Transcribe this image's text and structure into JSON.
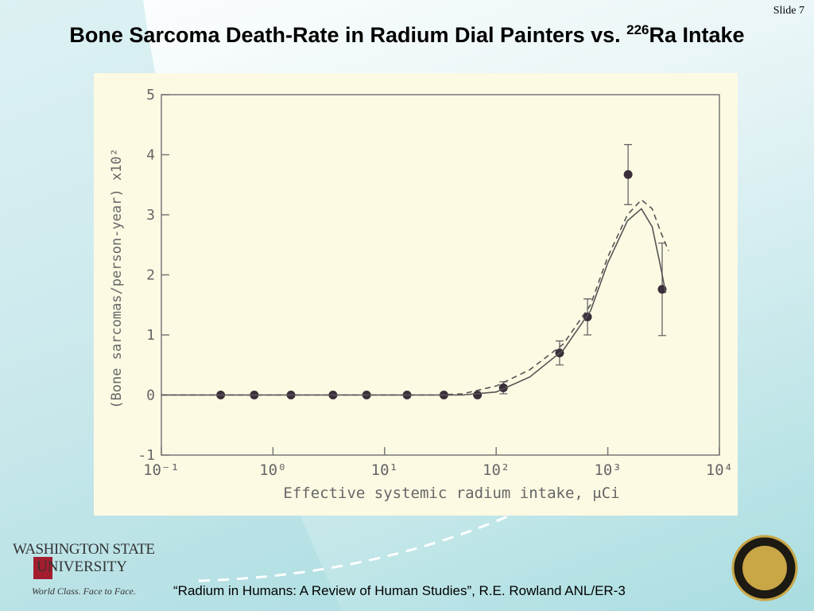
{
  "slide_number": "Slide 7",
  "title": {
    "before": "Bone Sarcoma Death-Rate in Radium Dial Painters vs. ",
    "superscript": "226",
    "after": "Ra Intake"
  },
  "logo": {
    "line1": "WASHINGTON STATE",
    "line2": "UNIVERSITY",
    "tagline": "World Class. Face to Face."
  },
  "citation": "“Radium in Humans: A Review of Human Studies”, R.E. Rowland ANL/ER-3",
  "chart_data": {
    "type": "scatter",
    "x_label": "Effective systemic radium intake, μCi",
    "y_label": "(Bone sarcomas/person-year)  x10²",
    "log_x": true,
    "xlim": [
      0.1,
      10000
    ],
    "xticks": [
      {
        "value": 0.1,
        "label": "10⁻¹"
      },
      {
        "value": 1,
        "label": "10⁰"
      },
      {
        "value": 10,
        "label": "10¹"
      },
      {
        "value": 100,
        "label": "10²"
      },
      {
        "value": 1000,
        "label": "10³"
      },
      {
        "value": 10000,
        "label": "10⁴"
      }
    ],
    "ylim": [
      -1,
      5
    ],
    "yticks": [
      -1,
      0,
      1,
      2,
      3,
      4,
      5
    ],
    "series": [
      {
        "type": "scatter",
        "color": "#3a2f3a",
        "x": [
          0.34,
          0.68,
          1.45,
          3.45,
          6.9,
          15.9,
          34,
          68,
          116,
          370,
          658,
          1520,
          3070
        ],
        "values": [
          0,
          0,
          0,
          0,
          0,
          0,
          0,
          0,
          0.12,
          0.7,
          1.3,
          3.67,
          1.76
        ],
        "errors": [
          null,
          null,
          null,
          null,
          null,
          null,
          null,
          null,
          0.1,
          0.2,
          0.3,
          0.5,
          0.77
        ]
      },
      {
        "type": "line",
        "color": "#555555",
        "dashed": false,
        "x": [
          0.1,
          1,
          10,
          50,
          100,
          200,
          400,
          700,
          1000,
          1500,
          2000,
          2500,
          3000,
          3300
        ],
        "values": [
          0,
          0,
          0,
          0,
          0.05,
          0.3,
          0.75,
          1.4,
          2.2,
          2.9,
          3.1,
          2.8,
          2.1,
          1.7
        ]
      },
      {
        "type": "line",
        "color": "#555555",
        "dashed": true,
        "x": [
          0.1,
          1,
          10,
          30,
          50,
          100,
          200,
          400,
          700,
          1000,
          1500,
          2000,
          2500,
          3000,
          3500
        ],
        "values": [
          0,
          0,
          0,
          0,
          0.02,
          0.15,
          0.42,
          0.85,
          1.5,
          2.3,
          3.0,
          3.25,
          3.1,
          2.7,
          2.4
        ]
      }
    ]
  }
}
